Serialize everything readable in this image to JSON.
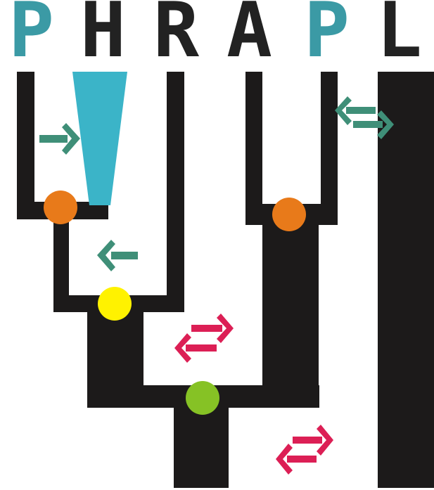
{
  "title": {
    "letters": [
      "P",
      "H",
      "R",
      "A",
      "P",
      "L"
    ],
    "letter_colors": [
      "#3b9aa5",
      "#222222",
      "#222222",
      "#222222",
      "#3b9aa5",
      "#222222"
    ]
  },
  "colors": {
    "tree": "#1c1a1a",
    "funnel": "#3bb4c8",
    "migration_oneway": "#3f8f78",
    "migration_twoway": "#dc1f55",
    "node_orange": "#e87a1a",
    "node_yellow": "#fff200",
    "node_green": "#86c225"
  },
  "icons": {
    "arrows": [
      "right-arrow-icon",
      "left-arrow-icon",
      "bidirectional-arrow-icon"
    ],
    "nodes": [
      "orange-node",
      "yellow-node",
      "green-node"
    ]
  }
}
